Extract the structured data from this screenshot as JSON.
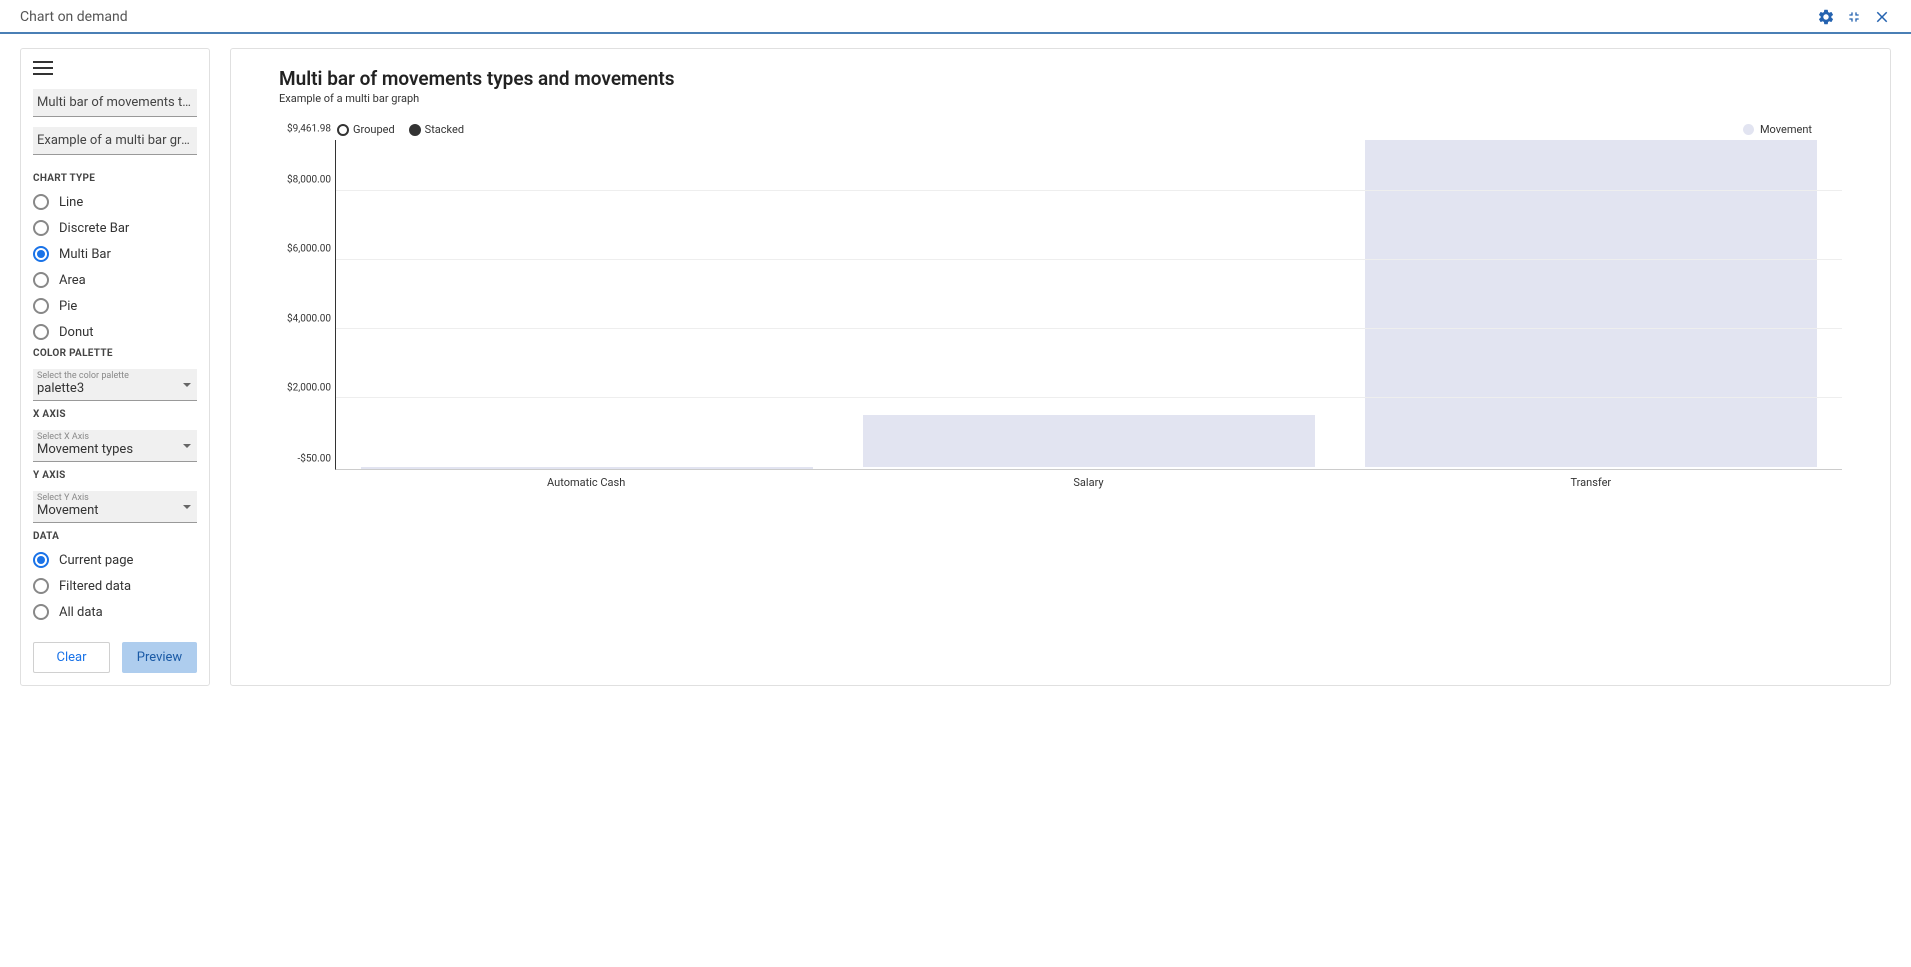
{
  "header": {
    "title": "Chart on demand"
  },
  "sidebar": {
    "title_input": "Multi bar of movements types and movements",
    "subtitle_input": "Example of a multi bar graph",
    "chart_type_label": "CHART TYPE",
    "chart_types": [
      {
        "label": "Line",
        "selected": false
      },
      {
        "label": "Discrete Bar",
        "selected": false
      },
      {
        "label": "Multi Bar",
        "selected": true
      },
      {
        "label": "Area",
        "selected": false
      },
      {
        "label": "Pie",
        "selected": false
      },
      {
        "label": "Donut",
        "selected": false
      }
    ],
    "color_palette_label": "COLOR PALETTE",
    "color_palette_select": {
      "label": "Select the color palette",
      "value": "palette3"
    },
    "x_axis_label": "X AXIS",
    "x_axis_select": {
      "label": "Select X Axis",
      "value": "Movement types"
    },
    "y_axis_label": "Y AXIS",
    "y_axis_select": {
      "label": "Select Y Axis",
      "value": "Movement"
    },
    "data_label": "DATA",
    "data_options": [
      {
        "label": "Current page",
        "selected": true
      },
      {
        "label": "Filtered data",
        "selected": false
      },
      {
        "label": "All data",
        "selected": false
      }
    ],
    "clear_button": "Clear",
    "preview_button": "Preview"
  },
  "chart": {
    "title": "Multi bar of movements types and movements",
    "subtitle": "Example of a multi bar graph",
    "modes": [
      {
        "label": "Grouped",
        "selected": true
      },
      {
        "label": "Stacked",
        "selected": false
      }
    ],
    "legend": {
      "label": "Movement",
      "color": "#e2e4f1"
    },
    "type": "bar",
    "y_ticks": [
      {
        "label": "$9,461.98",
        "value": 9461.98
      },
      {
        "label": "$8,000.00",
        "value": 8000
      },
      {
        "label": "$6,000.00",
        "value": 6000
      },
      {
        "label": "$4,000.00",
        "value": 4000
      },
      {
        "label": "$2,000.00",
        "value": 2000
      },
      {
        "label": "-$50.00",
        "value": -50
      }
    ],
    "y_min": -50,
    "y_max": 9461.98,
    "grid_values": [
      8000,
      6000,
      4000,
      2000
    ],
    "categories": [
      "Automatic Cash",
      "Salary",
      "Transfer"
    ],
    "values": [
      -50,
      1500,
      9461.98
    ],
    "bar_color": "#e2e4f1",
    "grid_color": "#eeeeee",
    "axis_color": "#333333",
    "background_color": "#ffffff",
    "accent_color": "#1a73e8"
  }
}
